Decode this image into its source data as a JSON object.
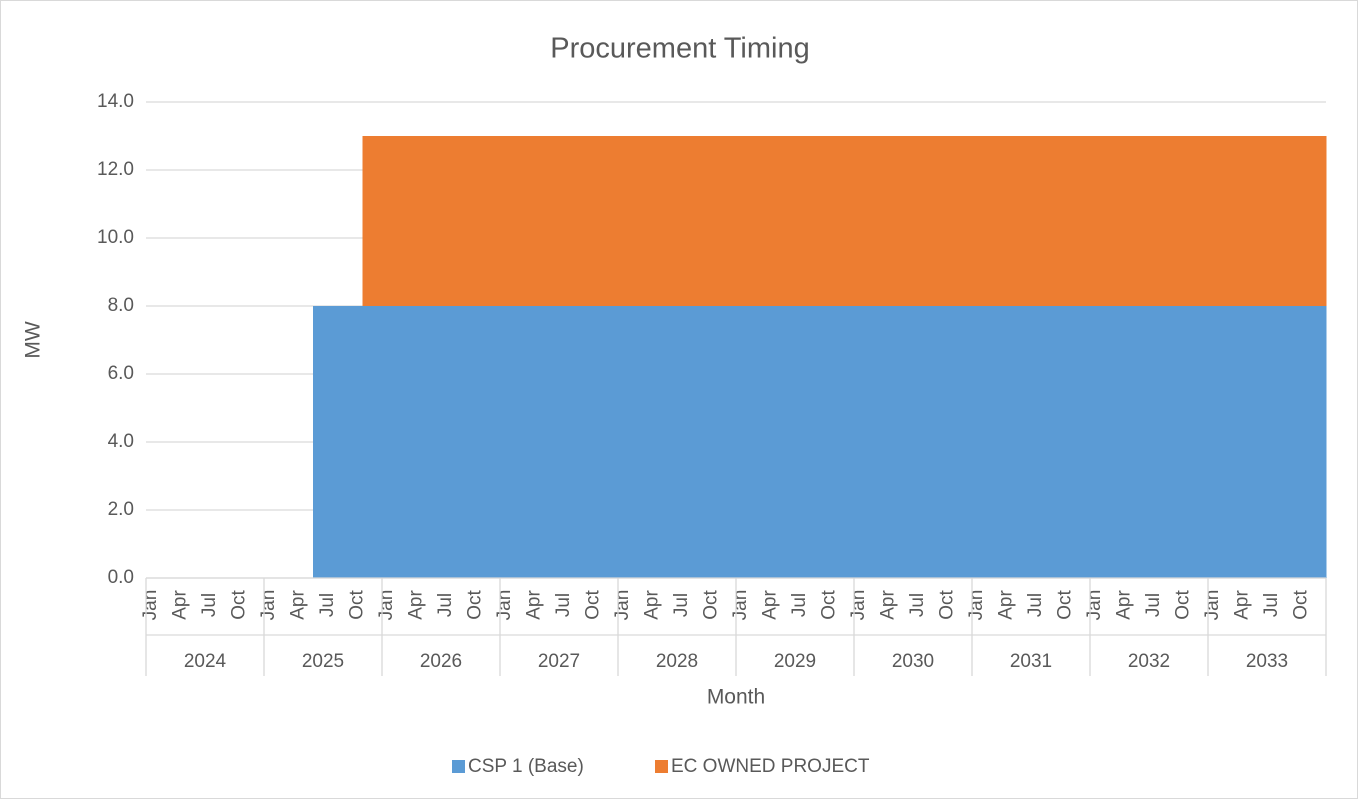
{
  "chart_data": {
    "type": "stacked-area-step",
    "title": "Procurement Timing",
    "x_label": "Month",
    "y_label": "MW",
    "categories": [
      "Jan",
      null,
      null,
      "Apr",
      null,
      null,
      "Jul",
      null,
      null,
      "Oct",
      null,
      null,
      "Jan",
      null,
      null,
      "Apr",
      null,
      null,
      "Jul",
      null,
      null,
      "Oct",
      null,
      null,
      "Jan",
      null,
      null,
      "Apr",
      null,
      null,
      "Jul",
      null,
      null,
      "Oct",
      null,
      null,
      "Jan",
      null,
      null,
      "Apr",
      null,
      null,
      "Jul",
      null,
      null,
      "Oct",
      null,
      null,
      "Jan",
      null,
      null,
      "Apr",
      null,
      null,
      "Jul",
      null,
      null,
      "Oct",
      null,
      null,
      "Jan",
      null,
      null,
      "Apr",
      null,
      null,
      "Jul",
      null,
      null,
      "Oct",
      null,
      null,
      "Jan",
      null,
      null,
      "Apr",
      null,
      null,
      "Jul",
      null,
      null,
      "Oct",
      null,
      null,
      "Jan",
      null,
      null,
      "Apr",
      null,
      null,
      "Jul",
      null,
      null,
      "Oct",
      null,
      null,
      "Jan",
      null,
      null,
      "Apr",
      null,
      null,
      "Jul",
      null,
      null,
      "Oct",
      null,
      null,
      "Jan",
      null,
      null,
      "Apr",
      null,
      null,
      "Jul",
      null,
      null,
      "Oct",
      null,
      null
    ],
    "year_groups": [
      "2024",
      "2025",
      "2026",
      "2027",
      "2028",
      "2029",
      "2030",
      "2031",
      "2032",
      "2033"
    ],
    "series": [
      {
        "name": "CSP 1 (Base)",
        "color": "#5b9bd5",
        "values": [
          0,
          0,
          0,
          0,
          0,
          0,
          0,
          0,
          0,
          0,
          0,
          0,
          0,
          0,
          0,
          0,
          0,
          8,
          8,
          8,
          8,
          8,
          8,
          8,
          8,
          8,
          8,
          8,
          8,
          8,
          8,
          8,
          8,
          8,
          8,
          8,
          8,
          8,
          8,
          8,
          8,
          8,
          8,
          8,
          8,
          8,
          8,
          8,
          8,
          8,
          8,
          8,
          8,
          8,
          8,
          8,
          8,
          8,
          8,
          8,
          8,
          8,
          8,
          8,
          8,
          8,
          8,
          8,
          8,
          8,
          8,
          8,
          8,
          8,
          8,
          8,
          8,
          8,
          8,
          8,
          8,
          8,
          8,
          8,
          8,
          8,
          8,
          8,
          8,
          8,
          8,
          8,
          8,
          8,
          8,
          8,
          8,
          8,
          8,
          8,
          8,
          8,
          8,
          8,
          8,
          8,
          8,
          8,
          8,
          8,
          8,
          8,
          8,
          8,
          8,
          8,
          8,
          8,
          8,
          8
        ]
      },
      {
        "name": "EC OWNED PROJECT",
        "color": "#ed7d31",
        "values": [
          0,
          0,
          0,
          0,
          0,
          0,
          0,
          0,
          0,
          0,
          0,
          0,
          0,
          0,
          0,
          0,
          0,
          0,
          0,
          0,
          0,
          0,
          5,
          5,
          5,
          5,
          5,
          5,
          5,
          5,
          5,
          5,
          5,
          5,
          5,
          5,
          5,
          5,
          5,
          5,
          5,
          5,
          5,
          5,
          5,
          5,
          5,
          5,
          5,
          5,
          5,
          5,
          5,
          5,
          5,
          5,
          5,
          5,
          5,
          5,
          5,
          5,
          5,
          5,
          5,
          5,
          5,
          5,
          5,
          5,
          5,
          5,
          5,
          5,
          5,
          5,
          5,
          5,
          5,
          5,
          5,
          5,
          5,
          5,
          5,
          5,
          5,
          5,
          5,
          5,
          5,
          5,
          5,
          5,
          5,
          5,
          5,
          5,
          5,
          5,
          5,
          5,
          5,
          5,
          5,
          5,
          5,
          5,
          5,
          5,
          5,
          5,
          5,
          5,
          5,
          5,
          5,
          5,
          5,
          5
        ]
      }
    ],
    "ylim": [
      0,
      14
    ],
    "yticks": [
      {
        "value": 0,
        "label": "0.0"
      },
      {
        "value": 2,
        "label": "2.0"
      },
      {
        "value": 4,
        "label": "4.0"
      },
      {
        "value": 6,
        "label": "6.0"
      },
      {
        "value": 8,
        "label": "8.0"
      },
      {
        "value": 10,
        "label": "10.0"
      },
      {
        "value": 12,
        "label": "12.0"
      },
      {
        "value": 14,
        "label": "14.0"
      }
    ],
    "grid": true
  }
}
